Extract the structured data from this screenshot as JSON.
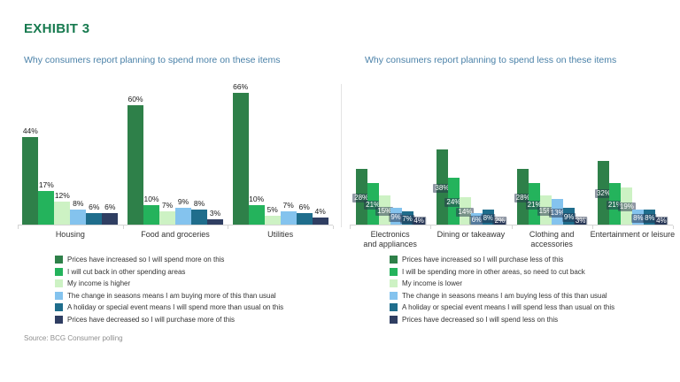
{
  "exhibit": {
    "title": "EXHIBIT 3",
    "source": "Source: BCG Consumer polling"
  },
  "colors": {
    "title_green": "#177a4f",
    "subtitle_blue": "#4a81a8",
    "axis_gray": "#d4d4d4",
    "divider_gray": "#e3e3e3",
    "source_gray": "#8f8f8f",
    "series": [
      "#2e8049",
      "#24b35c",
      "#cdf2c4",
      "#84c3ee",
      "#1f6d8c",
      "#2f3e62"
    ]
  },
  "chart_data": [
    {
      "type": "bar",
      "title": "Why consumers report planning to spend more on these items",
      "unit": "%",
      "ylim": [
        0,
        70
      ],
      "grid": false,
      "legend_position": "bottom",
      "value_label_style": "above",
      "categories": [
        "Housing",
        "Food and groceries",
        "Utilities"
      ],
      "series": [
        {
          "name": "Prices have increased so I will spend more on this",
          "color": "#2e8049",
          "values": [
            44,
            60,
            66
          ]
        },
        {
          "name": "I will cut back in other spending areas",
          "color": "#24b35c",
          "values": [
            17,
            10,
            10
          ]
        },
        {
          "name": "My income is higher",
          "color": "#cdf2c4",
          "values": [
            12,
            7,
            5
          ]
        },
        {
          "name": "The change in seasons means I am buying more of this than usual",
          "color": "#84c3ee",
          "values": [
            8,
            9,
            7
          ]
        },
        {
          "name": "A holiday or special event means I will spend more than usual on this",
          "color": "#1f6d8c",
          "values": [
            6,
            8,
            6
          ]
        },
        {
          "name": "Prices have decreased so I will purchase more of this",
          "color": "#2f3e62",
          "values": [
            6,
            3,
            4
          ]
        }
      ]
    },
    {
      "type": "bar",
      "title": "Why consumers report planning to spend less on these items",
      "unit": "%",
      "ylim": [
        0,
        70
      ],
      "grid": false,
      "legend_position": "bottom",
      "value_label_style": "inside",
      "categories": [
        "Electronics\nand appliances",
        "Dining or takeaway",
        "Clothing and\naccessories",
        "Entertainment or leisure"
      ],
      "series": [
        {
          "name": "Prices have increased so I will purchase less of this",
          "color": "#2e8049",
          "values": [
            28,
            38,
            28,
            32
          ]
        },
        {
          "name": "I will be spending more in other areas, so need to cut back",
          "color": "#24b35c",
          "values": [
            21,
            24,
            21,
            21
          ]
        },
        {
          "name": "My income is lower",
          "color": "#cdf2c4",
          "values": [
            15,
            14,
            15,
            19
          ]
        },
        {
          "name": "The change in seasons means I am buying less of this than usual",
          "color": "#84c3ee",
          "values": [
            9,
            6,
            13,
            8
          ]
        },
        {
          "name": "A holiday or special event means I will spend less than usual on this",
          "color": "#1f6d8c",
          "values": [
            7,
            8,
            9,
            8
          ]
        },
        {
          "name": "Prices have decreased so I will spend less on this",
          "color": "#2f3e62",
          "values": [
            4,
            2,
            3,
            4
          ]
        }
      ]
    }
  ]
}
